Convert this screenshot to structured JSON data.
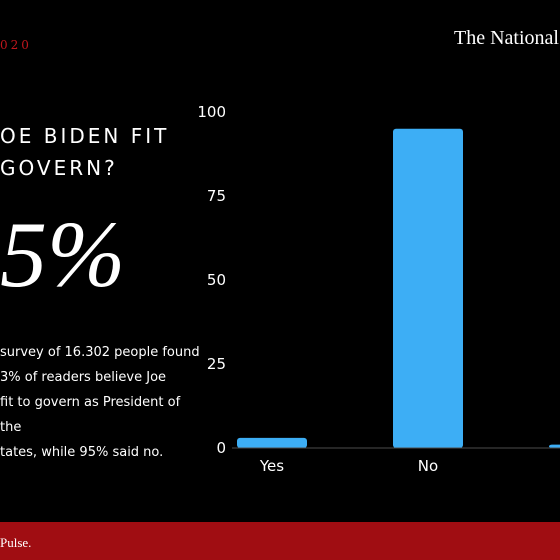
{
  "header": {
    "date_fragment": "020",
    "brand": "The National"
  },
  "question": "OE BIDEN FIT\nGOVERN?",
  "headline_value": "5%",
  "description": "survey of 16.302 people found\n3% of readers believe Joe\nfit to govern as President of the\ntates, while 95% said no.",
  "footer": {
    "text": "Pulse."
  },
  "colors": {
    "background": "#000000",
    "bar": "#3daef5",
    "footer": "#a00d12",
    "date": "#c0161c"
  },
  "chart_data": {
    "type": "bar",
    "categories": [
      "Yes",
      "No",
      ""
    ],
    "values": [
      3,
      95,
      1
    ],
    "yticks": [
      0,
      25,
      50,
      75,
      100
    ],
    "ylim": [
      0,
      100
    ],
    "title": "",
    "xlabel": "",
    "ylabel": "",
    "grid": false
  }
}
